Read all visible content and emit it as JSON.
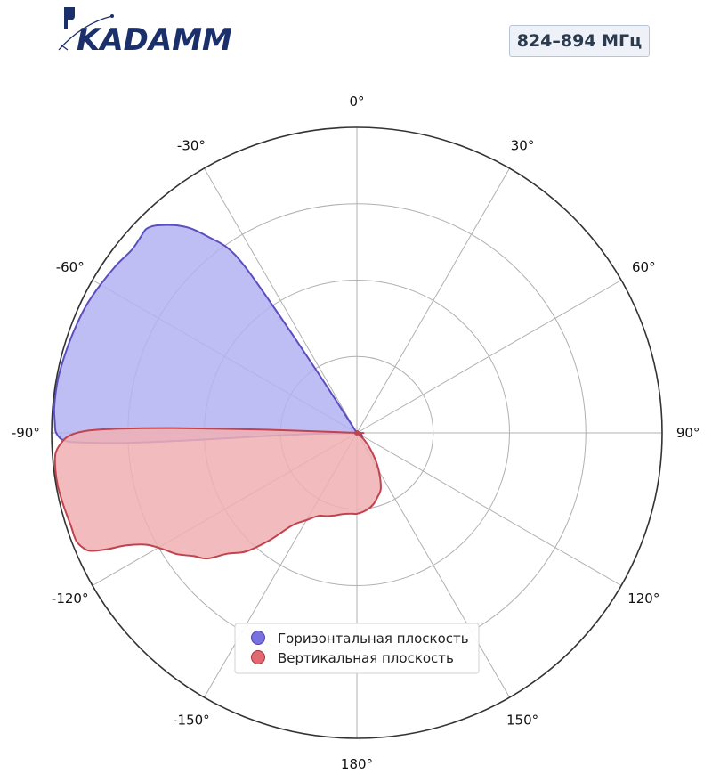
{
  "logo": {
    "text": "KADAMM"
  },
  "badge": {
    "text": "824–894 МГц"
  },
  "colors": {
    "horizontal_fill": "#b3b3f2",
    "horizontal_line": "#5b4fbf",
    "vertical_fill": "#f0b0b4",
    "vertical_line": "#c0434e",
    "grid": "#b0b0b0",
    "outer": "#333333"
  },
  "chart_data": {
    "type": "polar",
    "angle_unit": "deg",
    "zero_location": "top",
    "direction": "clockwise",
    "angular_ticks": [
      0,
      30,
      60,
      90,
      120,
      150,
      180,
      -150,
      -120,
      -90,
      -60,
      -30
    ],
    "angular_tick_labels": [
      "0°",
      "30°",
      "60°",
      "90°",
      "120°",
      "150°",
      "180°",
      "-150°",
      "-120°",
      "-90°",
      "-60°",
      "-30°"
    ],
    "radial_gridlines": [
      0.25,
      0.5,
      0.75,
      1.0
    ],
    "radial_range": [
      0,
      1
    ],
    "legend_position": "bottom-center",
    "series": [
      {
        "name": "Горизонтальная плоскость",
        "color": "#5b4fbf",
        "points": [
          [
            -33,
            0.0
          ],
          [
            -33,
            0.25
          ],
          [
            -33.5,
            0.5
          ],
          [
            -34,
            0.66
          ],
          [
            -35,
            0.74
          ],
          [
            -37,
            0.8
          ],
          [
            -39,
            0.86
          ],
          [
            -41,
            0.9
          ],
          [
            -43,
            0.93
          ],
          [
            -44.5,
            0.95
          ],
          [
            -46,
            0.96
          ],
          [
            -48,
            0.955
          ],
          [
            -51,
            0.95
          ],
          [
            -55,
            0.96
          ],
          [
            -60,
            0.97
          ],
          [
            -65,
            0.98
          ],
          [
            -70,
            0.985
          ],
          [
            -75,
            0.99
          ],
          [
            -80,
            0.995
          ],
          [
            -85,
            0.995
          ],
          [
            -88,
            0.99
          ],
          [
            -90,
            0.985
          ],
          [
            -91.5,
            0.96
          ],
          [
            -92,
            0.9
          ],
          [
            -92.5,
            0.75
          ],
          [
            -92.5,
            0.5
          ],
          [
            -92,
            0.3
          ],
          [
            -91.5,
            0.15
          ],
          [
            -90,
            0.0
          ]
        ]
      },
      {
        "name": "Вертикальная плоскость",
        "color": "#c0434e",
        "points": [
          [
            -88,
            0.0
          ],
          [
            -88,
            0.3
          ],
          [
            -88.5,
            0.6
          ],
          [
            -89,
            0.78
          ],
          [
            -89.5,
            0.88
          ],
          [
            -90.5,
            0.94
          ],
          [
            -92,
            0.97
          ],
          [
            -94,
            0.99
          ],
          [
            -97,
            0.995
          ],
          [
            -100,
            0.995
          ],
          [
            -104,
            0.99
          ],
          [
            -108,
            0.985
          ],
          [
            -111,
            0.985
          ],
          [
            -113,
            0.97
          ],
          [
            -114,
            0.95
          ],
          [
            -115,
            0.9
          ],
          [
            -116,
            0.84
          ],
          [
            -118,
            0.78
          ],
          [
            -121,
            0.74
          ],
          [
            -124,
            0.71
          ],
          [
            -127,
            0.67
          ],
          [
            -130,
            0.64
          ],
          [
            -133,
            0.58
          ],
          [
            -137,
            0.53
          ],
          [
            -141,
            0.45
          ],
          [
            -145,
            0.37
          ],
          [
            -150,
            0.33
          ],
          [
            -155,
            0.3
          ],
          [
            -160,
            0.29
          ],
          [
            -165,
            0.28
          ],
          [
            -170,
            0.27
          ],
          [
            -176,
            0.265
          ],
          [
            180,
            0.265
          ],
          [
            173,
            0.255
          ],
          [
            167,
            0.24
          ],
          [
            162,
            0.22
          ],
          [
            157,
            0.2
          ],
          [
            152,
            0.16
          ],
          [
            147,
            0.12
          ],
          [
            142,
            0.08
          ],
          [
            137,
            0.05
          ],
          [
            130,
            0.02
          ],
          [
            120,
            0.0
          ]
        ]
      }
    ]
  }
}
